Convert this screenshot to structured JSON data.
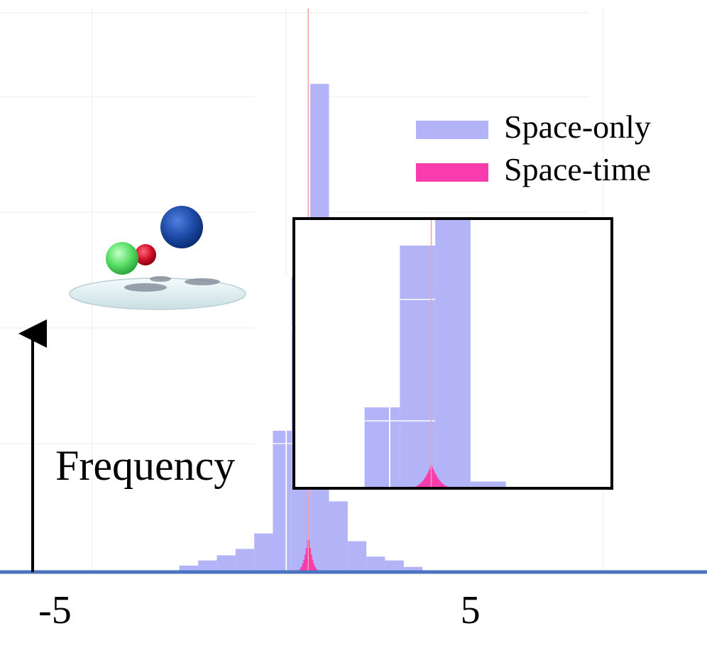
{
  "chart_data": {
    "type": "bar",
    "ylabel": "Frequency",
    "xlabel": "",
    "x_ticks": [
      {
        "value": -5,
        "label": "-5"
      },
      {
        "value": 5,
        "label": "5"
      }
    ],
    "xlim": [
      -6.22,
      10.8
    ],
    "grid": true,
    "legend_placement": "top-right",
    "reference_line_x": 1.2,
    "series": [
      {
        "name": "Space-only",
        "color": "#b3b3f8",
        "bin_edges": [
          -1.9,
          -1.45,
          -1.0,
          -0.55,
          -0.1,
          0.35,
          0.8,
          1.25,
          1.7,
          2.15,
          2.6,
          3.05,
          3.5,
          3.95
        ],
        "values": [
          0.5,
          0.9,
          1.3,
          1.8,
          3.0,
          11.0,
          23.0,
          38.0,
          5.5,
          2.4,
          1.2,
          0.9,
          0.4
        ],
        "tails": [
          {
            "from": -4.2,
            "to": -1.9,
            "value": 0.1
          },
          {
            "from": 3.95,
            "to": 5.6,
            "value": 0.1
          }
        ]
      },
      {
        "name": "Space-time",
        "color": "#f83cae",
        "peak_x": 1.2,
        "peak_value": 2.8,
        "half_width": 0.35
      }
    ],
    "inset": {
      "x_range": [
        -0.55,
        3.5
      ],
      "y_range": [
        5.0,
        25.0
      ],
      "frame_color": "#000000"
    }
  },
  "legend": {
    "items": [
      {
        "label": "Space-only",
        "color": "#b3b3f8"
      },
      {
        "label": "Space-time",
        "color": "#f83cae"
      }
    ]
  },
  "axis": {
    "baseline_color": "#4a74c0",
    "arrow_color": "#000000"
  },
  "molecule_icon": {
    "name": "molecule-icon",
    "atoms": [
      {
        "color": "#2350a8"
      },
      {
        "color": "#d0102a"
      },
      {
        "color": "#5ee06a"
      }
    ]
  }
}
